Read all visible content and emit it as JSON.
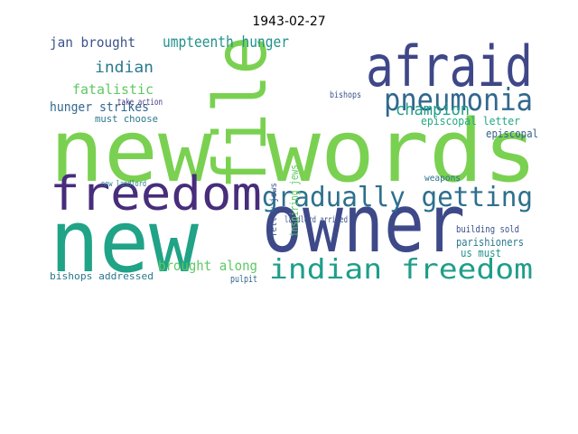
{
  "chart_data": {
    "type": "wordcloud",
    "title": "1943-02-27",
    "words": [
      {
        "text": "new words",
        "color": "#7ad151"
      },
      {
        "text": "file",
        "color": "#7ad151"
      },
      {
        "text": "freedom",
        "color": "#472d7b"
      },
      {
        "text": "new",
        "color": "#20a386"
      },
      {
        "text": "owner",
        "color": "#3e4989"
      },
      {
        "text": "afraid",
        "color": "#3f4788"
      },
      {
        "text": "pneumonia",
        "color": "#31688e"
      },
      {
        "text": "gradually getting",
        "color": "#2d708e"
      },
      {
        "text": "indian freedom",
        "color": "#1f9e89"
      },
      {
        "text": "umpteenth hunger",
        "color": "#21918c"
      },
      {
        "text": "jan brought",
        "color": "#3b528b"
      },
      {
        "text": "indian",
        "color": "#2a788e"
      },
      {
        "text": "fatalistic",
        "color": "#5ec962"
      },
      {
        "text": "hunger strikes",
        "color": "#31688e"
      },
      {
        "text": "champion",
        "color": "#1f9e89"
      },
      {
        "text": "episcopal letter",
        "color": "#22a884"
      },
      {
        "text": "episcopal",
        "color": "#35608d"
      },
      {
        "text": "must choose",
        "color": "#2a788e"
      },
      {
        "text": "take action",
        "color": "#443a83"
      },
      {
        "text": "bishops addressed",
        "color": "#2a788e"
      },
      {
        "text": "brought along",
        "color": "#5ec962"
      },
      {
        "text": "parishioners",
        "color": "#2a788e"
      },
      {
        "text": "us must",
        "color": "#21918c"
      },
      {
        "text": "building sold",
        "color": "#3b528b"
      },
      {
        "text": "pulpit",
        "color": "#31688e"
      },
      {
        "text": "weapons",
        "color": "#2d708e"
      },
      {
        "text": "landlord arrived",
        "color": "#3b528b"
      },
      {
        "text": "bishops",
        "color": "#3b528b"
      },
      {
        "text": "new landlord",
        "color": "#2a788e"
      },
      {
        "text": "inspiring jews",
        "color": "#5ec962"
      },
      {
        "text": "fellow jews",
        "color": "#3b528b"
      }
    ]
  }
}
